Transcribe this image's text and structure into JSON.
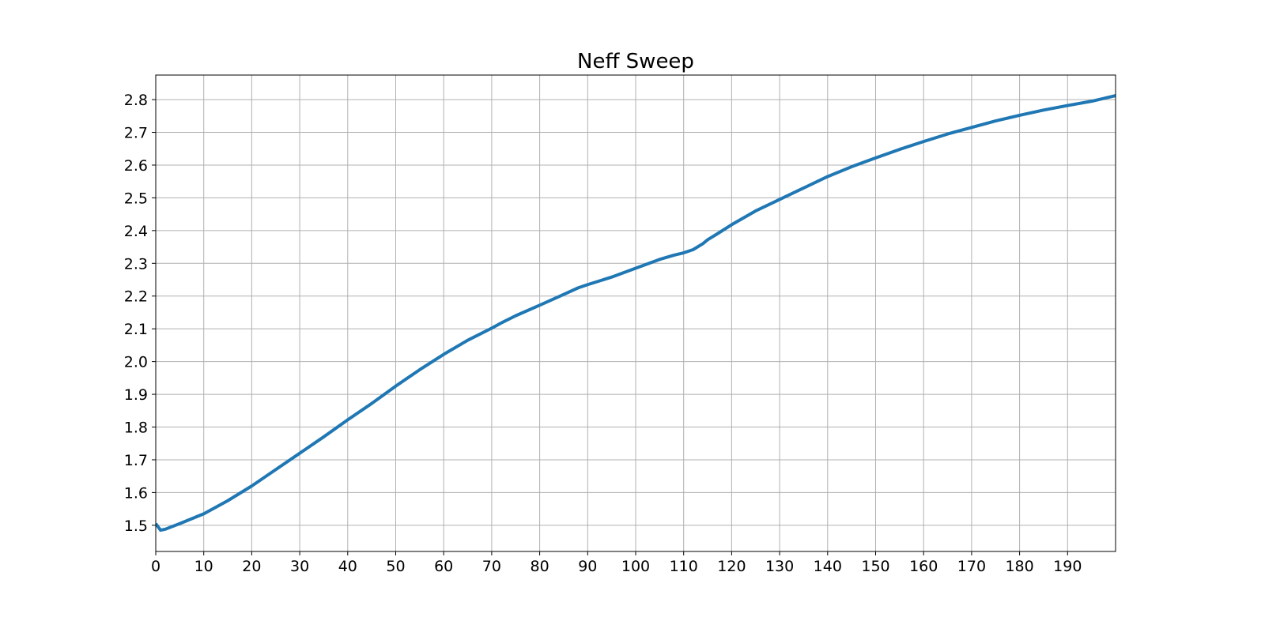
{
  "chart_data": {
    "type": "line",
    "title": "Neff Sweep",
    "xlabel": "",
    "ylabel": "",
    "xlim": [
      0,
      200
    ],
    "ylim": [
      1.42,
      2.875
    ],
    "grid": true,
    "legend": "none",
    "x_ticks": [
      "0",
      "10",
      "20",
      "30",
      "40",
      "50",
      "60",
      "70",
      "80",
      "90",
      "100",
      "110",
      "120",
      "130",
      "140",
      "150",
      "160",
      "170",
      "180",
      "190"
    ],
    "x_tick_values": [
      0,
      10,
      20,
      30,
      40,
      50,
      60,
      70,
      80,
      90,
      100,
      110,
      120,
      130,
      140,
      150,
      160,
      170,
      180,
      190
    ],
    "y_ticks": [
      "1.5",
      "1.6",
      "1.7",
      "1.8",
      "1.9",
      "2.0",
      "2.1",
      "2.2",
      "2.3",
      "2.4",
      "2.5",
      "2.6",
      "2.7",
      "2.8"
    ],
    "y_tick_values": [
      1.5,
      1.6,
      1.7,
      1.8,
      1.9,
      2.0,
      2.1,
      2.2,
      2.3,
      2.4,
      2.5,
      2.6,
      2.7,
      2.8
    ],
    "series": [
      {
        "color": "#1f77b4",
        "x": [
          0,
          1,
          2,
          5,
          10,
          15,
          20,
          25,
          30,
          35,
          40,
          45,
          50,
          55,
          60,
          65,
          70,
          72,
          75,
          80,
          85,
          88,
          90,
          95,
          100,
          105,
          108,
          110,
          112,
          114,
          115,
          117,
          120,
          125,
          130,
          135,
          140,
          145,
          150,
          155,
          160,
          165,
          170,
          175,
          180,
          185,
          190,
          195,
          200
        ],
        "y": [
          1.505,
          1.485,
          1.488,
          1.505,
          1.535,
          1.575,
          1.62,
          1.67,
          1.72,
          1.77,
          1.822,
          1.872,
          1.925,
          1.975,
          2.022,
          2.065,
          2.102,
          2.118,
          2.14,
          2.172,
          2.205,
          2.225,
          2.235,
          2.258,
          2.285,
          2.312,
          2.325,
          2.332,
          2.342,
          2.36,
          2.372,
          2.39,
          2.418,
          2.46,
          2.495,
          2.53,
          2.565,
          2.595,
          2.622,
          2.648,
          2.672,
          2.695,
          2.715,
          2.735,
          2.752,
          2.768,
          2.782,
          2.795,
          2.812
        ]
      }
    ]
  }
}
